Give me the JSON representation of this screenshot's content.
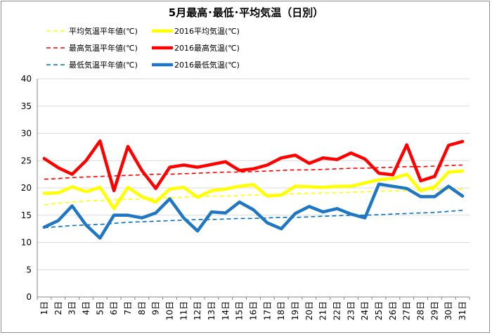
{
  "chart_data": {
    "type": "line",
    "title": "5月最高･最低･平均気温（日別）",
    "xlabel": "",
    "ylabel": "",
    "ylim": [
      0,
      40
    ],
    "yticks": [
      0,
      5,
      10,
      15,
      20,
      25,
      30,
      35,
      40
    ],
    "grid": true,
    "legend_position": "top",
    "categories": [
      "1日",
      "2日",
      "3日",
      "4日",
      "5日",
      "6日",
      "7日",
      "8日",
      "9日",
      "10日",
      "11日",
      "12日",
      "13日",
      "14日",
      "15日",
      "16日",
      "17日",
      "18日",
      "19日",
      "20日",
      "21日",
      "22日",
      "23日",
      "24日",
      "25日",
      "26日",
      "27日",
      "28日",
      "29日",
      "30日",
      "31日"
    ],
    "series": [
      {
        "name": "平均気温平年値(℃)",
        "color": "#ffff00",
        "style": "dashed",
        "values": [
          16.9,
          17.2,
          17.4,
          17.6,
          17.7,
          17.8,
          17.9,
          18.0,
          18.1,
          18.2,
          18.3,
          18.4,
          18.5,
          18.5,
          18.6,
          18.7,
          18.8,
          18.8,
          18.9,
          19.0,
          19.1,
          19.1,
          19.2,
          19.3,
          19.4,
          19.4,
          19.5,
          19.6,
          19.7,
          19.7,
          19.8
        ]
      },
      {
        "name": "2016平均気温(℃)",
        "color": "#ffff00",
        "style": "solid",
        "values": [
          19.0,
          19.1,
          20.2,
          19.3,
          20.1,
          16.2,
          20.1,
          18.4,
          17.4,
          19.8,
          20.1,
          18.3,
          19.5,
          19.8,
          20.3,
          20.6,
          18.5,
          18.7,
          20.3,
          20.2,
          20.1,
          20.3,
          20.3,
          20.9,
          21.5,
          21.7,
          22.5,
          19.5,
          20.2,
          22.9,
          23.1
        ]
      },
      {
        "name": "最高気温平年値(℃)",
        "color": "#ff0000",
        "style": "dashed",
        "values": [
          21.6,
          21.7,
          21.9,
          22.0,
          22.1,
          22.2,
          22.3,
          22.4,
          22.5,
          22.5,
          22.6,
          22.7,
          22.8,
          22.9,
          22.9,
          23.0,
          23.1,
          23.2,
          23.3,
          23.3,
          23.4,
          23.5,
          23.6,
          23.6,
          23.7,
          23.8,
          23.9,
          23.9,
          24.0,
          24.1,
          24.2
        ]
      },
      {
        "name": "2016最高気温(℃)",
        "color": "#ff0000",
        "style": "solid",
        "values": [
          25.4,
          23.7,
          22.5,
          25.0,
          28.6,
          19.5,
          27.6,
          23.2,
          19.9,
          23.8,
          24.2,
          23.8,
          24.3,
          24.8,
          23.2,
          23.5,
          24.2,
          25.5,
          26.0,
          24.5,
          25.5,
          25.2,
          26.4,
          25.3,
          22.7,
          22.4,
          27.9,
          21.3,
          22.1,
          27.8,
          28.5
        ]
      },
      {
        "name": "最低気温平年値(℃)",
        "color": "#0070c0",
        "style": "dashed",
        "values": [
          12.7,
          12.9,
          13.1,
          13.2,
          13.3,
          13.5,
          13.7,
          13.8,
          13.9,
          14.0,
          14.1,
          14.2,
          14.2,
          14.3,
          14.4,
          14.4,
          14.5,
          14.6,
          14.6,
          14.7,
          14.8,
          14.9,
          15.0,
          15.0,
          15.1,
          15.2,
          15.3,
          15.4,
          15.5,
          15.7,
          15.9
        ]
      },
      {
        "name": "2016最低気温(℃)",
        "color": "#1f77c4",
        "style": "solid",
        "values": [
          12.8,
          14.0,
          16.7,
          13.2,
          10.8,
          15.0,
          15.0,
          14.5,
          15.4,
          18.0,
          14.5,
          12.1,
          15.6,
          15.4,
          17.4,
          16.0,
          13.6,
          12.5,
          15.3,
          16.6,
          15.6,
          16.2,
          15.2,
          14.5,
          20.7,
          20.3,
          19.9,
          18.4,
          18.4,
          20.3,
          18.5
        ]
      }
    ]
  }
}
